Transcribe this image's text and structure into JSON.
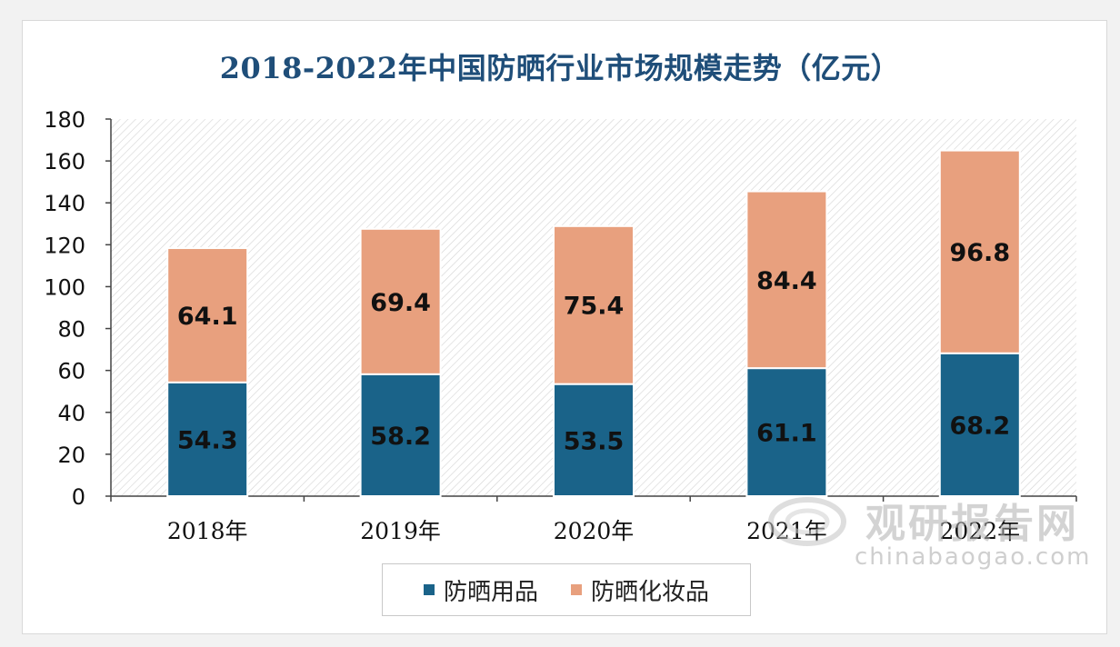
{
  "chart_data": {
    "type": "bar",
    "stacked": true,
    "title": "2018-2022年中国防晒行业市场规模走势（亿元）",
    "categories": [
      "2018年",
      "2019年",
      "2020年",
      "2021年",
      "2022年"
    ],
    "series": [
      {
        "name": "防晒用品",
        "values": [
          54.3,
          58.2,
          53.5,
          61.1,
          68.2
        ],
        "color": "#1a6389"
      },
      {
        "name": "防晒化妆品",
        "values": [
          64.1,
          69.4,
          75.4,
          84.4,
          96.8
        ],
        "color": "#e8a07e"
      }
    ],
    "value_labels": {
      "防晒用品": [
        "54.3",
        "58.2",
        "53.5",
        "61.1",
        "68.2"
      ],
      "防晒化妆品": [
        "64.1",
        "69.4",
        "75.4",
        "84.4",
        "96.8"
      ]
    },
    "ylim": [
      0,
      180
    ],
    "yticks": [
      "0",
      "20",
      "40",
      "60",
      "80",
      "100",
      "120",
      "140",
      "160",
      "180"
    ],
    "xlabel": "",
    "ylabel": "",
    "legend_position": "bottom",
    "grid": false
  },
  "watermark": {
    "name_cn": "观研报告网",
    "url": "chinabaogao.com"
  }
}
